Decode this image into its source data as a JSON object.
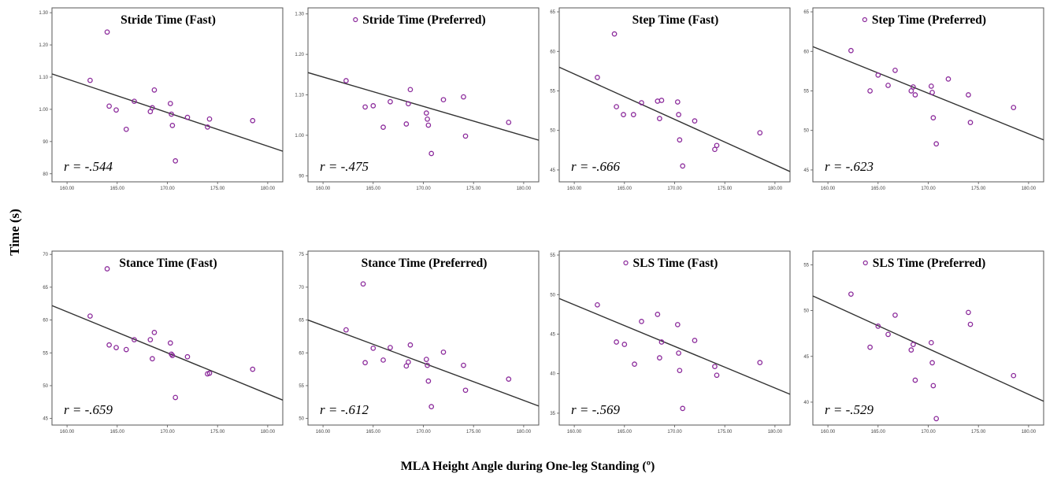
{
  "figure": {
    "ylabel": "Time (s)",
    "xlabel": "MLA Height Angle during One-leg Standing (º)"
  },
  "chart_data": [
    {
      "type": "scatter",
      "title": "Stride Time (Fast)",
      "r_label": "r = -.544",
      "xlim": [
        158.5,
        181.5
      ],
      "ylim": [
        0.775,
        1.315
      ],
      "xticks": [
        "160.00",
        "165.00",
        "170.00",
        "175.00",
        "180.00"
      ],
      "yticks": [
        "80",
        "90",
        "1.00",
        "1.10",
        "1.20",
        "1.30"
      ],
      "ytick_values": [
        0.8,
        0.9,
        1.0,
        1.1,
        1.2,
        1.3
      ],
      "x": [
        162.3,
        164.0,
        164.2,
        164.9,
        165.9,
        166.7,
        168.3,
        168.5,
        168.7,
        170.3,
        170.4,
        170.5,
        170.8,
        172.0,
        174.0,
        174.2,
        178.5
      ],
      "y": [
        1.09,
        1.24,
        1.01,
        0.998,
        0.938,
        1.025,
        0.993,
        1.005,
        1.06,
        1.018,
        0.985,
        0.95,
        0.84,
        0.975,
        0.945,
        0.97,
        0.965
      ],
      "fit": [
        [
          158.5,
          1.11
        ],
        [
          181.5,
          0.87
        ]
      ],
      "legend_marker": false
    },
    {
      "type": "scatter",
      "title": "Stride Time (Preferred)",
      "r_label": "r = -.475",
      "xlim": [
        158.5,
        181.5
      ],
      "ylim": [
        0.885,
        1.315
      ],
      "xticks": [
        "160.00",
        "165.00",
        "170.00",
        "175.00",
        "180.00"
      ],
      "yticks": [
        "90",
        "1.00",
        "1.10",
        "1.20",
        "1.30"
      ],
      "ytick_values": [
        0.9,
        1.0,
        1.1,
        1.2,
        1.3
      ],
      "x": [
        162.3,
        164.2,
        165.0,
        166.0,
        166.7,
        168.3,
        168.5,
        168.7,
        170.3,
        170.4,
        170.5,
        170.8,
        172.0,
        174.0,
        174.2,
        178.5
      ],
      "y": [
        1.135,
        1.07,
        1.073,
        1.02,
        1.083,
        1.028,
        1.078,
        1.113,
        1.055,
        1.04,
        1.025,
        0.955,
        1.088,
        1.095,
        0.998,
        1.032
      ],
      "fit": [
        [
          158.5,
          1.155
        ],
        [
          181.5,
          0.988
        ]
      ],
      "legend_marker": true
    },
    {
      "type": "scatter",
      "title": "Step Time (Fast)",
      "r_label": "r = -.666",
      "xlim": [
        158.5,
        181.5
      ],
      "ylim": [
        0.435,
        0.655
      ],
      "xticks": [
        "160.00",
        "165.00",
        "170.00",
        "175.00",
        "180.00"
      ],
      "yticks": [
        "45",
        "50",
        "55",
        "60",
        "65"
      ],
      "ytick_values": [
        0.45,
        0.5,
        0.55,
        0.6,
        0.65
      ],
      "x": [
        162.3,
        164.0,
        164.2,
        164.9,
        165.9,
        166.7,
        168.3,
        168.5,
        168.7,
        170.3,
        170.4,
        170.5,
        170.8,
        172.0,
        174.0,
        174.2,
        178.5
      ],
      "y": [
        0.567,
        0.622,
        0.53,
        0.52,
        0.52,
        0.535,
        0.537,
        0.515,
        0.538,
        0.536,
        0.52,
        0.488,
        0.455,
        0.512,
        0.476,
        0.481,
        0.497
      ],
      "fit": [
        [
          158.5,
          0.58
        ],
        [
          181.5,
          0.448
        ]
      ],
      "legend_marker": false
    },
    {
      "type": "scatter",
      "title": "Step Time (Preferred)",
      "r_label": "r = -.623",
      "xlim": [
        158.5,
        181.5
      ],
      "ylim": [
        0.435,
        0.655
      ],
      "xticks": [
        "160.00",
        "165.00",
        "170.00",
        "175.00",
        "180.00"
      ],
      "yticks": [
        "45",
        "50",
        "55",
        "60",
        "65"
      ],
      "ytick_values": [
        0.45,
        0.5,
        0.55,
        0.6,
        0.65
      ],
      "x": [
        162.3,
        164.2,
        165.0,
        166.0,
        166.7,
        168.3,
        168.5,
        168.7,
        170.3,
        170.4,
        170.5,
        170.8,
        172.0,
        174.0,
        174.2,
        178.5
      ],
      "y": [
        0.601,
        0.55,
        0.57,
        0.557,
        0.576,
        0.55,
        0.555,
        0.545,
        0.556,
        0.548,
        0.516,
        0.483,
        0.565,
        0.545,
        0.51,
        0.529
      ],
      "fit": [
        [
          158.5,
          0.606
        ],
        [
          181.5,
          0.488
        ]
      ],
      "legend_marker": true
    },
    {
      "type": "scatter",
      "title": "Stance Time (Fast)",
      "r_label": "r = -.659",
      "xlim": [
        158.5,
        181.5
      ],
      "ylim": [
        0.44,
        0.705
      ],
      "xticks": [
        "160.00",
        "165.00",
        "170.00",
        "175.00",
        "180.00"
      ],
      "yticks": [
        "45",
        "50",
        "55",
        "60",
        "65",
        "70"
      ],
      "ytick_values": [
        0.45,
        0.5,
        0.55,
        0.6,
        0.65,
        0.7
      ],
      "x": [
        162.3,
        164.0,
        164.2,
        164.9,
        165.9,
        166.7,
        168.3,
        168.5,
        168.7,
        170.3,
        170.4,
        170.5,
        170.8,
        172.0,
        174.0,
        174.2,
        178.5
      ],
      "y": [
        0.606,
        0.678,
        0.562,
        0.558,
        0.555,
        0.57,
        0.57,
        0.541,
        0.581,
        0.565,
        0.548,
        0.546,
        0.482,
        0.544,
        0.518,
        0.519,
        0.525
      ],
      "fit": [
        [
          158.5,
          0.622
        ],
        [
          181.5,
          0.478
        ]
      ],
      "legend_marker": false
    },
    {
      "type": "scatter",
      "title": "Stance Time (Preferred)",
      "r_label": "r = -.612",
      "xlim": [
        158.5,
        181.5
      ],
      "ylim": [
        0.49,
        0.755
      ],
      "xticks": [
        "160.00",
        "165.00",
        "170.00",
        "175.00",
        "180.00"
      ],
      "yticks": [
        "50",
        "55",
        "60",
        "65",
        "70",
        "75"
      ],
      "ytick_values": [
        0.5,
        0.55,
        0.6,
        0.65,
        0.7,
        0.75
      ],
      "x": [
        162.3,
        164.0,
        164.2,
        165.0,
        166.0,
        166.7,
        168.3,
        168.5,
        168.7,
        170.3,
        170.4,
        170.5,
        170.8,
        172.0,
        174.0,
        174.2,
        178.5
      ],
      "y": [
        0.635,
        0.705,
        0.585,
        0.607,
        0.589,
        0.608,
        0.58,
        0.586,
        0.612,
        0.59,
        0.581,
        0.557,
        0.518,
        0.601,
        0.581,
        0.543,
        0.56
      ],
      "fit": [
        [
          158.5,
          0.65
        ],
        [
          181.5,
          0.519
        ]
      ],
      "legend_marker": false
    },
    {
      "type": "scatter",
      "title": "SLS Time (Fast)",
      "r_label": "r = -.569",
      "xlim": [
        158.5,
        181.5
      ],
      "ylim": [
        0.335,
        0.555
      ],
      "xticks": [
        "160.00",
        "165.00",
        "170.00",
        "175.00",
        "180.00"
      ],
      "yticks": [
        "35",
        "40",
        "45",
        "50",
        "55"
      ],
      "ytick_values": [
        0.35,
        0.4,
        0.45,
        0.5,
        0.55
      ],
      "x": [
        162.3,
        164.2,
        165.0,
        166.0,
        166.7,
        168.3,
        168.5,
        168.7,
        170.3,
        170.4,
        170.5,
        170.8,
        172.0,
        174.0,
        174.2,
        178.5
      ],
      "y": [
        0.487,
        0.44,
        0.437,
        0.412,
        0.466,
        0.475,
        0.42,
        0.44,
        0.462,
        0.426,
        0.404,
        0.356,
        0.442,
        0.409,
        0.398,
        0.414
      ],
      "fit": [
        [
          158.5,
          0.495
        ],
        [
          181.5,
          0.374
        ]
      ],
      "legend_marker": true
    },
    {
      "type": "scatter",
      "title": "SLS Time (Preferred)",
      "r_label": "r = -.529",
      "xlim": [
        158.5,
        181.5
      ],
      "ylim": [
        0.375,
        0.565
      ],
      "xticks": [
        "160.00",
        "165.00",
        "170.00",
        "175.00",
        "180.00"
      ],
      "yticks": [
        "40",
        "45",
        "50",
        "55"
      ],
      "ytick_values": [
        0.4,
        0.45,
        0.5,
        0.55
      ],
      "x": [
        162.3,
        164.2,
        165.0,
        166.0,
        166.7,
        168.3,
        168.5,
        168.7,
        170.3,
        170.4,
        170.5,
        170.8,
        174.0,
        174.2,
        178.5
      ],
      "y": [
        0.518,
        0.46,
        0.483,
        0.474,
        0.495,
        0.457,
        0.463,
        0.424,
        0.465,
        0.443,
        0.418,
        0.382,
        0.498,
        0.485,
        0.429
      ],
      "fit": [
        [
          158.5,
          0.516
        ],
        [
          181.5,
          0.401
        ]
      ],
      "legend_marker": true
    }
  ]
}
